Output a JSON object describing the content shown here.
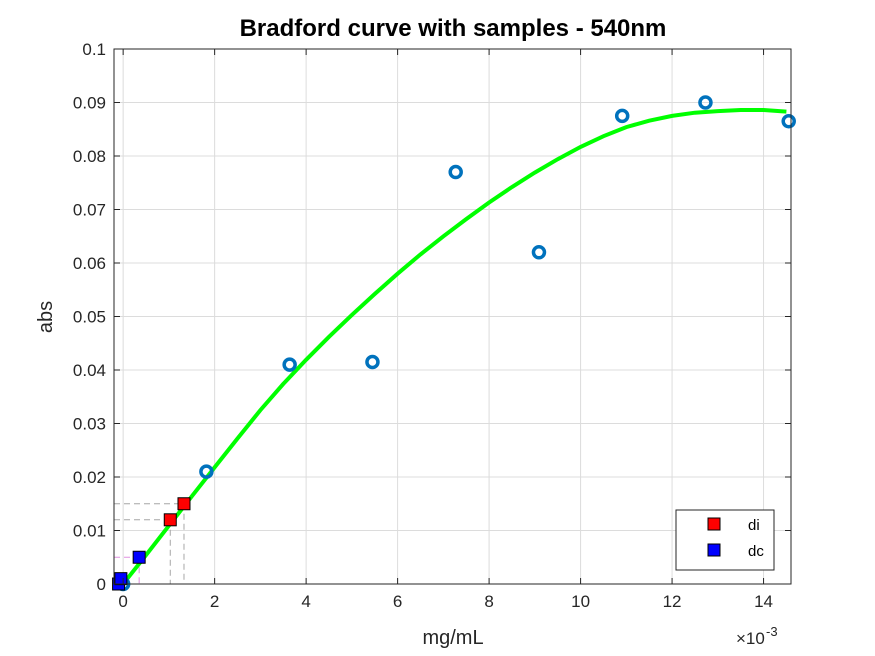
{
  "chart_data": {
    "type": "scatter",
    "title": "Bradford curve with samples - 540nm",
    "xlabel": "mg/mL",
    "ylabel": "abs",
    "x_exponent_prefix": "×10",
    "x_exponent": "-3",
    "xlim": [
      -0.2,
      14.6
    ],
    "ylim": [
      0,
      0.1
    ],
    "x_ticks": [
      0,
      2,
      4,
      6,
      8,
      10,
      12,
      14
    ],
    "x_tick_labels": [
      "0",
      "2",
      "4",
      "6",
      "8",
      "10",
      "12",
      "14"
    ],
    "y_ticks": [
      0,
      0.01,
      0.02,
      0.03,
      0.04,
      0.05,
      0.06,
      0.07,
      0.08,
      0.09,
      0.1
    ],
    "y_tick_labels": [
      "0",
      "0.01",
      "0.02",
      "0.03",
      "0.04",
      "0.05",
      "0.06",
      "0.07",
      "0.08",
      "0.09",
      "0.1"
    ],
    "grid": true,
    "legend_position": "bottom-right",
    "colors": {
      "standards": "#0072bd",
      "fit": "#00ff00",
      "di": "#ff0000",
      "dc": "#0000ff",
      "guide_di": "#a6a6a6",
      "guide_dc": "#e090e0"
    },
    "standards": [
      {
        "x": 0,
        "y": 0
      },
      {
        "x": 1.82,
        "y": 0.021
      },
      {
        "x": 3.64,
        "y": 0.041
      },
      {
        "x": 5.45,
        "y": 0.0415
      },
      {
        "x": 7.27,
        "y": 0.077
      },
      {
        "x": 9.09,
        "y": 0.062
      },
      {
        "x": 10.91,
        "y": 0.0875
      },
      {
        "x": 12.73,
        "y": 0.09
      },
      {
        "x": 14.55,
        "y": 0.0865
      }
    ],
    "fit_curve": [
      {
        "x": 0,
        "y": 0
      },
      {
        "x": 0.5,
        "y": 0.0054
      },
      {
        "x": 1,
        "y": 0.0109
      },
      {
        "x": 1.5,
        "y": 0.0164
      },
      {
        "x": 2,
        "y": 0.0218
      },
      {
        "x": 2.5,
        "y": 0.0272
      },
      {
        "x": 3,
        "y": 0.0325
      },
      {
        "x": 3.5,
        "y": 0.0374
      },
      {
        "x": 4,
        "y": 0.0419
      },
      {
        "x": 4.5,
        "y": 0.0462
      },
      {
        "x": 5,
        "y": 0.0503
      },
      {
        "x": 5.5,
        "y": 0.0542
      },
      {
        "x": 6,
        "y": 0.058
      },
      {
        "x": 6.5,
        "y": 0.0616
      },
      {
        "x": 7,
        "y": 0.065
      },
      {
        "x": 7.5,
        "y": 0.0682
      },
      {
        "x": 8,
        "y": 0.0713
      },
      {
        "x": 8.5,
        "y": 0.0742
      },
      {
        "x": 9,
        "y": 0.0769
      },
      {
        "x": 9.5,
        "y": 0.0794
      },
      {
        "x": 10,
        "y": 0.0817
      },
      {
        "x": 10.5,
        "y": 0.0837
      },
      {
        "x": 11,
        "y": 0.0854
      },
      {
        "x": 11.5,
        "y": 0.0866
      },
      {
        "x": 12,
        "y": 0.0875
      },
      {
        "x": 12.5,
        "y": 0.0881
      },
      {
        "x": 13,
        "y": 0.0884
      },
      {
        "x": 13.5,
        "y": 0.0886
      },
      {
        "x": 14,
        "y": 0.0886
      },
      {
        "x": 14.5,
        "y": 0.0883
      }
    ],
    "series": [
      {
        "name": "di",
        "points": [
          {
            "x": 1.03,
            "y": 0.012
          },
          {
            "x": 1.33,
            "y": 0.015
          }
        ]
      },
      {
        "name": "dc",
        "points": [
          {
            "x": -0.1,
            "y": 0
          },
          {
            "x": -0.05,
            "y": 0.001
          },
          {
            "x": 0.35,
            "y": 0.005
          }
        ]
      }
    ]
  }
}
